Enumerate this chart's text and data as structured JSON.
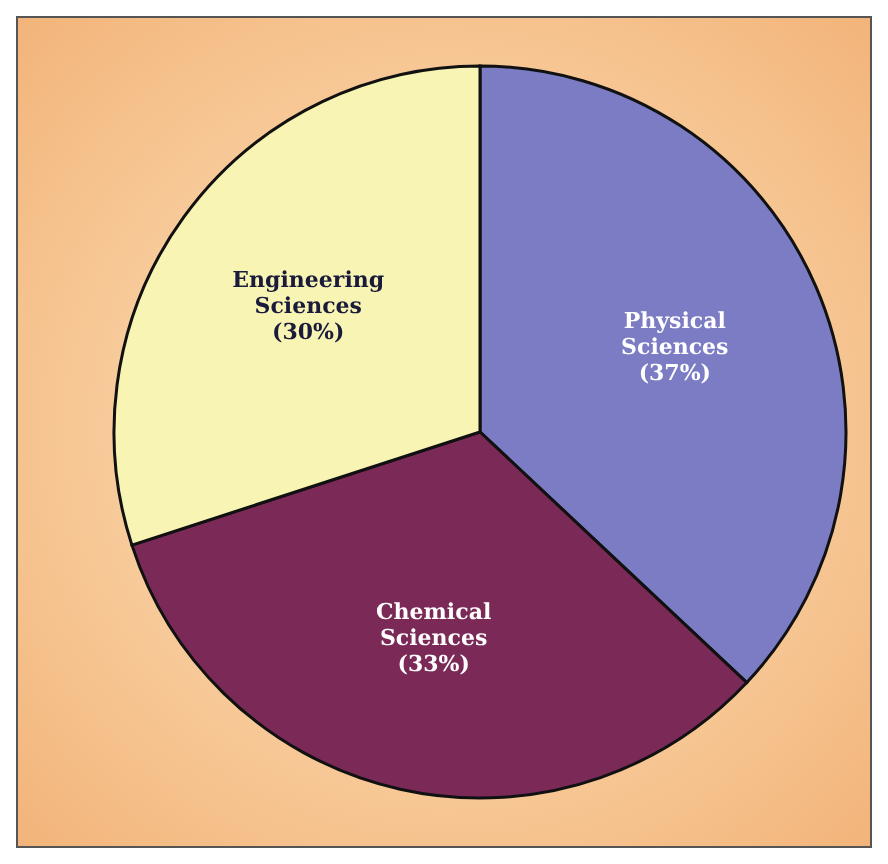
{
  "chart_data": {
    "type": "pie",
    "categories": [
      "Physical Sciences",
      "Chemical Sciences",
      "Engineering Sciences"
    ],
    "values": [
      37,
      33,
      30
    ],
    "value_labels": [
      "(37%)",
      "(33%)",
      "(30%)"
    ],
    "colors": [
      "#7b7cc4",
      "#7b2a58",
      "#f8f4b4"
    ]
  }
}
